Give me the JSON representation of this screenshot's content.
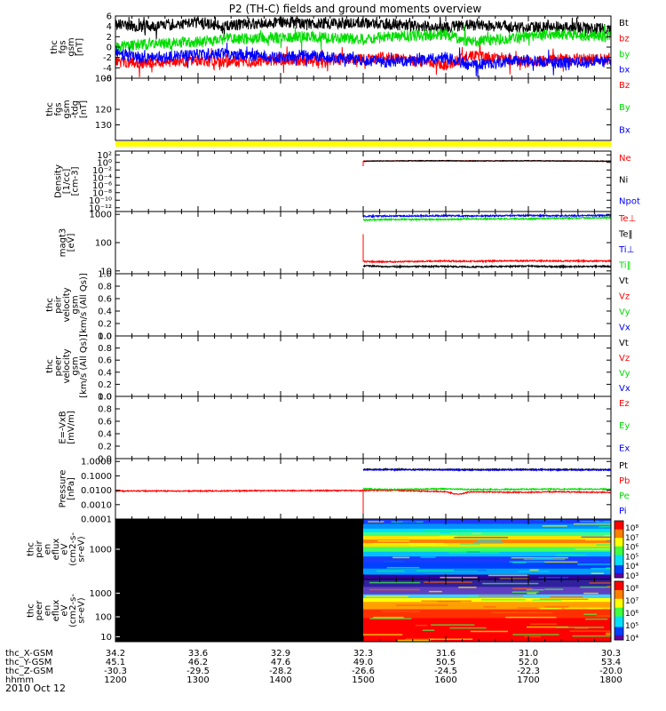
{
  "chart_data": {
    "type": "line",
    "title": "P2 (TH-C) fields and ground moments overview",
    "date": "2010 Oct 12",
    "panels": [
      {
        "id": "fgs",
        "ylabel": [
          "thc",
          "fgs",
          "gsm",
          "[nT]"
        ],
        "ylim": [
          -6,
          6
        ],
        "scale": "linear",
        "ticks": [
          "6",
          "4",
          "2",
          "0",
          "-2",
          "-4",
          "-6"
        ],
        "tick_values": [
          6,
          4,
          2,
          0,
          -2,
          -4,
          -6
        ],
        "legend": [
          {
            "label": "Bt",
            "color": "#000000"
          },
          {
            "label": "bz",
            "color": "#ff0000"
          },
          {
            "label": "by",
            "color": "#00dd00"
          },
          {
            "label": "bx",
            "color": "#0000ff"
          }
        ],
        "series": [
          {
            "name": "Bt",
            "color": "#000000",
            "x": [
              1200,
              1230,
              1300,
              1330,
              1400,
              1430,
              1500,
              1530,
              1600,
              1630,
              1700,
              1730,
              1800
            ],
            "y": [
              4.4,
              4.0,
              4.7,
              4.1,
              4.9,
              4.5,
              4.6,
              4.4,
              3.8,
              4.3,
              3.8,
              3.9,
              3.5
            ]
          },
          {
            "name": "bz",
            "color": "#ff0000",
            "x": [
              1200,
              1230,
              1300,
              1330,
              1400,
              1430,
              1500,
              1530,
              1600,
              1630,
              1700,
              1730,
              1800
            ],
            "y": [
              -2.8,
              -3.2,
              -2.5,
              -3.0,
              -2.4,
              -2.6,
              -2.2,
              -2.0,
              -3.5,
              -1.5,
              -3.0,
              -2.5,
              -2.2
            ]
          },
          {
            "name": "by",
            "color": "#00dd00",
            "x": [
              1200,
              1230,
              1300,
              1330,
              1400,
              1430,
              1500,
              1530,
              1600,
              1630,
              1700,
              1730,
              1800
            ],
            "y": [
              0.0,
              0.5,
              1.0,
              1.5,
              1.8,
              2.0,
              1.5,
              2.0,
              2.5,
              1.0,
              2.0,
              2.5,
              2.0
            ]
          },
          {
            "name": "bx",
            "color": "#0000ff",
            "x": [
              1200,
              1230,
              1300,
              1330,
              1400,
              1430,
              1500,
              1530,
              1600,
              1630,
              1700,
              1730,
              1800
            ],
            "y": [
              -1.0,
              -2.2,
              -1.5,
              -1.2,
              -2.0,
              -1.5,
              -2.5,
              -3.0,
              -2.0,
              -3.5,
              -2.5,
              -3.0,
              -2.8
            ]
          }
        ]
      },
      {
        "id": "fgs_tdg",
        "ylabel": [
          "thc",
          "fgs",
          "gsm",
          "-tdg",
          "[nT]"
        ],
        "ylim": [
          100,
          140
        ],
        "scale": "linear",
        "ticks": [
          "100",
          "120",
          "130"
        ],
        "tick_values": [
          100,
          120,
          130
        ],
        "legend": [
          {
            "label": "Bz",
            "color": "#ff0000"
          },
          {
            "label": "By",
            "color": "#00dd00"
          },
          {
            "label": "Bx",
            "color": "#0000ff"
          }
        ],
        "series": []
      },
      {
        "id": "density",
        "ylabel": [
          "Density",
          "[1/cc]",
          "[cm-3]"
        ],
        "ylim": [
          -13,
          3
        ],
        "scale": "log",
        "ticks": [
          "10²",
          "10⁰",
          "10⁻²",
          "10⁻⁴",
          "10⁻⁶",
          "10⁻⁸",
          "10⁻¹⁰",
          "10⁻¹²"
        ],
        "tick_values": [
          2,
          0,
          -2,
          -4,
          -6,
          -8,
          -10,
          -12
        ],
        "legend": [
          {
            "label": "Ne",
            "color": "#ff0000"
          },
          {
            "label": "Ni",
            "color": "#000000"
          },
          {
            "label": "Npot",
            "color": "#0000ff"
          }
        ],
        "series": [
          {
            "name": "Ne",
            "color": "#ff0000",
            "x": [
              1500,
              1530,
              1600,
              1630,
              1700,
              1730,
              1800
            ],
            "y": [
              0.3,
              0.4,
              0.4,
              0.4,
              0.4,
              0.4,
              0.3
            ]
          },
          {
            "name": "Ni",
            "color": "#000000",
            "x": [
              1500,
              1530,
              1600,
              1630,
              1700,
              1730,
              1800
            ],
            "y": [
              0.35,
              0.4,
              0.45,
              0.4,
              0.45,
              0.4,
              0.35
            ]
          }
        ]
      },
      {
        "id": "temperature",
        "ylabel": [
          "magt3",
          "[eV]"
        ],
        "ylim": [
          0.9,
          3.1
        ],
        "scale": "log",
        "ticks": [
          "1000",
          "100",
          "10"
        ],
        "tick_values": [
          3,
          2,
          1
        ],
        "legend": [
          {
            "label": "Te⊥",
            "color": "#ff0000"
          },
          {
            "label": "Te‖",
            "color": "#000000"
          },
          {
            "label": "Ti⊥",
            "color": "#0000ff"
          },
          {
            "label": "Ti‖",
            "color": "#00dd00"
          }
        ],
        "series": [
          {
            "name": "Te⊥",
            "color": "#ff0000",
            "x": [
              1500,
              1530,
              1600,
              1630,
              1700,
              1730,
              1800
            ],
            "y": [
              1.33,
              1.32,
              1.35,
              1.34,
              1.36,
              1.35,
              1.35
            ]
          },
          {
            "name": "Te‖",
            "color": "#000000",
            "x": [
              1500,
              1530,
              1600,
              1630,
              1700,
              1730,
              1800
            ],
            "y": [
              1.18,
              1.15,
              1.16,
              1.14,
              1.17,
              1.15,
              1.16
            ]
          },
          {
            "name": "Ti⊥",
            "color": "#0000ff",
            "x": [
              1500,
              1530,
              1600,
              1630,
              1700,
              1730,
              1800
            ],
            "y": [
              2.93,
              2.94,
              2.95,
              2.94,
              2.96,
              2.95,
              2.96
            ]
          },
          {
            "name": "Ti‖",
            "color": "#00dd00",
            "x": [
              1500,
              1530,
              1600,
              1630,
              1700,
              1730,
              1800
            ],
            "y": [
              2.8,
              2.82,
              2.82,
              2.84,
              2.84,
              2.86,
              2.88
            ]
          }
        ]
      },
      {
        "id": "peir_velocity",
        "ylabel": [
          "thc",
          "peir",
          "velocity",
          "gsm",
          "[km/s (All Qs)]"
        ],
        "ylim": [
          0,
          1
        ],
        "scale": "linear",
        "ticks": [
          "1.0",
          "0.8",
          "0.6",
          "0.4",
          "0.2",
          "0.0"
        ],
        "tick_values": [
          1.0,
          0.8,
          0.6,
          0.4,
          0.2,
          0.0
        ],
        "legend": [
          {
            "label": "Vt",
            "color": "#000000"
          },
          {
            "label": "Vz",
            "color": "#ff0000"
          },
          {
            "label": "Vy",
            "color": "#00dd00"
          },
          {
            "label": "Vx",
            "color": "#0000ff"
          }
        ],
        "series": []
      },
      {
        "id": "peer_velocity",
        "ylabel": [
          "thc",
          "peer",
          "velocity",
          "gsm",
          "[km/s (All Qs)]"
        ],
        "ylim": [
          0,
          1
        ],
        "scale": "linear",
        "ticks": [
          "1.0",
          "0.8",
          "0.6",
          "0.4",
          "0.2",
          "0.0"
        ],
        "tick_values": [
          1.0,
          0.8,
          0.6,
          0.4,
          0.2,
          0.0
        ],
        "legend": [
          {
            "label": "Vt",
            "color": "#000000"
          },
          {
            "label": "Vz",
            "color": "#ff0000"
          },
          {
            "label": "Vy",
            "color": "#00dd00"
          },
          {
            "label": "Vx",
            "color": "#0000ff"
          }
        ],
        "series": []
      },
      {
        "id": "efield",
        "ylabel": [
          "E=-VxB",
          "[mV/m]"
        ],
        "ylim": [
          0,
          1
        ],
        "scale": "linear",
        "ticks": [
          "1.0",
          "0.8",
          "0.6",
          "0.4",
          "0.2",
          "0.0"
        ],
        "tick_values": [
          1.0,
          0.8,
          0.6,
          0.4,
          0.2,
          0.0
        ],
        "legend": [
          {
            "label": "Ez",
            "color": "#ff0000"
          },
          {
            "label": "Ey",
            "color": "#00dd00"
          },
          {
            "label": "Ex",
            "color": "#0000ff"
          }
        ],
        "series": []
      },
      {
        "id": "pressure",
        "ylabel": [
          "Pressure",
          "[nPa]"
        ],
        "ylim": [
          -4,
          0.2
        ],
        "scale": "log",
        "ticks": [
          "1.0000",
          "0.1000",
          "0.0100",
          "0.0010",
          "0.0001"
        ],
        "tick_values": [
          0,
          -1,
          -2,
          -3,
          -4
        ],
        "legend": [
          {
            "label": "Pt",
            "color": "#000000"
          },
          {
            "label": "Pb",
            "color": "#ff0000"
          },
          {
            "label": "Pe",
            "color": "#00dd00"
          },
          {
            "label": "Pi",
            "color": "#0000ff"
          }
        ],
        "series": [
          {
            "name": "Pb",
            "color": "#ff0000",
            "x": [
              1200,
              1300,
              1400,
              1500,
              1530,
              1600,
              1615,
              1630,
              1700,
              1730,
              1800
            ],
            "y": [
              -2.05,
              -2.05,
              -2.03,
              -2.02,
              -2.0,
              -2.1,
              -2.3,
              -2.1,
              -2.15,
              -2.1,
              -2.15
            ]
          },
          {
            "name": "Pt",
            "color": "#000000",
            "x": [
              1500,
              1530,
              1600,
              1630,
              1700,
              1730,
              1800
            ],
            "y": [
              -0.55,
              -0.55,
              -0.55,
              -0.57,
              -0.55,
              -0.56,
              -0.56
            ]
          },
          {
            "name": "Pi",
            "color": "#0000ff",
            "x": [
              1500,
              1530,
              1600,
              1630,
              1700,
              1730,
              1800
            ],
            "y": [
              -0.58,
              -0.58,
              -0.58,
              -0.6,
              -0.58,
              -0.59,
              -0.59
            ]
          },
          {
            "name": "Pe",
            "color": "#00dd00",
            "x": [
              1500,
              1530,
              1600,
              1630,
              1700,
              1730,
              1800
            ],
            "y": [
              -1.9,
              -1.95,
              -1.9,
              -1.95,
              -1.93,
              -1.92,
              -1.92
            ]
          }
        ]
      },
      {
        "id": "peir_spec",
        "type": "heatmap",
        "ylabel": [
          "thc",
          "peir",
          "en",
          "eflux",
          "eV",
          "(cm2-s-",
          "sr-eV)"
        ],
        "ticks": [
          "1000"
        ],
        "colorbar_ticks": [
          "10⁸",
          "10⁷",
          "10⁶",
          "10⁵",
          "10⁴",
          "10³"
        ],
        "data_start": 1500
      },
      {
        "id": "peer_spec",
        "type": "heatmap",
        "ylabel": [
          "thc",
          "peer",
          "en",
          "eflux",
          "eV",
          "(cm2-s-",
          "sr-eV)"
        ],
        "ticks": [
          "1000",
          "100",
          "10"
        ],
        "colorbar_ticks": [
          "10⁸",
          "10⁷",
          "10⁶",
          "10⁵",
          "10⁴"
        ],
        "data_start": 1500
      }
    ],
    "x_axis": {
      "range": [
        1200,
        1800
      ],
      "row_labels": [
        "thc_X-GSM",
        "thc_Y-GSM",
        "thc_Z-GSM",
        "hhmm"
      ],
      "columns": [
        {
          "x": 1200,
          "values": [
            "34.2",
            "45.1",
            "-30.3",
            "1200"
          ]
        },
        {
          "x": 1300,
          "values": [
            "33.6",
            "46.2",
            "-29.5",
            "1300"
          ]
        },
        {
          "x": 1400,
          "values": [
            "32.9",
            "47.6",
            "-28.2",
            "1400"
          ]
        },
        {
          "x": 1500,
          "values": [
            "32.3",
            "49.0",
            "-26.6",
            "1500"
          ]
        },
        {
          "x": 1600,
          "values": [
            "31.6",
            "50.5",
            "-24.5",
            "1600"
          ]
        },
        {
          "x": 1700,
          "values": [
            "31.0",
            "52.0",
            "-22.3",
            "1700"
          ]
        },
        {
          "x": 1800,
          "values": [
            "30.3",
            "53.4",
            "-20.0",
            "1800"
          ]
        }
      ]
    }
  }
}
